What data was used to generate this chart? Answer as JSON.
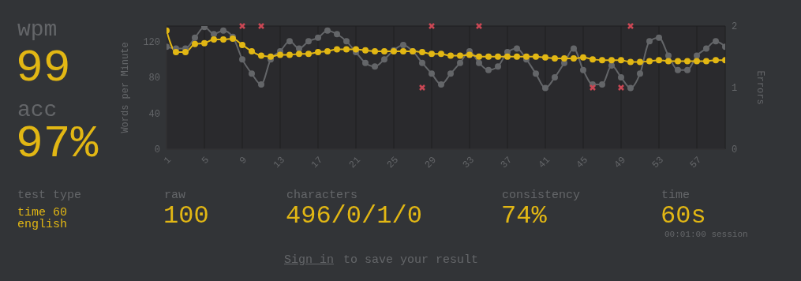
{
  "chart_data": [
    {
      "type": "line",
      "ylabel": "Words per Minute",
      "y2label": "Errors",
      "x": [
        1,
        2,
        3,
        4,
        5,
        6,
        7,
        8,
        9,
        10,
        11,
        12,
        13,
        14,
        15,
        16,
        17,
        18,
        19,
        20,
        21,
        22,
        23,
        24,
        25,
        26,
        27,
        28,
        29,
        30,
        31,
        32,
        33,
        34,
        35,
        36,
        37,
        38,
        39,
        40,
        41,
        42,
        43,
        44,
        45,
        46,
        47,
        48,
        49,
        50,
        51,
        52,
        53,
        54,
        55,
        56,
        57,
        58,
        59,
        60
      ],
      "series": [
        {
          "color": "#646669",
          "marker": "circle",
          "values": [
            114,
            112,
            112,
            124,
            136,
            128,
            132,
            125,
            100,
            84,
            72,
            100,
            109,
            120,
            112,
            120,
            124,
            132,
            128,
            120,
            108,
            96,
            92,
            100,
            110,
            116,
            109,
            96,
            84,
            72,
            84,
            96,
            109,
            96,
            88,
            92,
            108,
            112,
            100,
            84,
            68,
            80,
            96,
            112,
            88,
            72,
            72,
            93,
            80,
            68,
            84,
            120,
            124,
            104,
            88,
            88,
            104,
            112,
            120,
            114
          ]
        },
        {
          "color": "#e2b714",
          "marker": "circle",
          "values": [
            132,
            108,
            108,
            117,
            118,
            122,
            122,
            123,
            116,
            109,
            104,
            103,
            105,
            105,
            106,
            106,
            108,
            109,
            111,
            111,
            111,
            110,
            109,
            109,
            109,
            109,
            109,
            108,
            106,
            106,
            104,
            104,
            105,
            103,
            103,
            103,
            103,
            103,
            103,
            103,
            102,
            101,
            101,
            101,
            102,
            100,
            99,
            99,
            99,
            97,
            97,
            98,
            99,
            98,
            98,
            98,
            98,
            98,
            99,
            99
          ]
        },
        {
          "type": "scatter",
          "axis": "y2",
          "color": "#ca4754",
          "marker": "cross",
          "x": [
            9,
            11,
            28,
            29,
            34,
            46,
            49,
            50
          ],
          "values": [
            2,
            2,
            1,
            2,
            2,
            1,
            1,
            2
          ]
        }
      ],
      "xlim": [
        1,
        60
      ],
      "xticks": [
        1,
        5,
        9,
        13,
        17,
        21,
        25,
        29,
        33,
        37,
        41,
        45,
        49,
        53,
        57
      ],
      "ylim": [
        0,
        137
      ],
      "yticks": [
        0,
        40,
        80,
        120
      ],
      "y2lim": [
        0,
        2
      ],
      "y2ticks": [
        0,
        1,
        2
      ],
      "grid": true
    },
    {
      "type": "other",
      "annotations": [
        "wpm",
        "99",
        "acc",
        "97%",
        "test type",
        "time 60",
        "english",
        "raw",
        "100",
        "characters",
        "496/0/1/0",
        "consistency",
        "74%",
        "time",
        "60s",
        "00:01:00 session",
        "Sign in",
        "to save your result"
      ]
    }
  ]
}
